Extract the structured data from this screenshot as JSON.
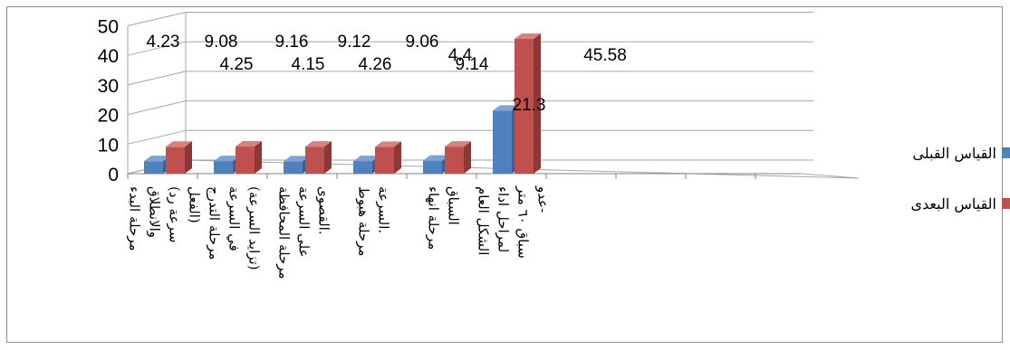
{
  "chart_data": {
    "type": "bar",
    "categories": [
      "مرحلة البدء والانطلاق (سرعة رد الفعل)",
      "مرحلة التدرج في السرعة (تزايد السرعة)",
      "مرحلة المحافظة على السرعة القصوى.",
      "مرحلة هبوط السرعة.",
      "مرحلة انهاء السباق",
      "الشكل العام لمراحل اداء سباق ٦٠ متر عدو-",
      "",
      "",
      ""
    ],
    "series": [
      {
        "name": "القياس القبلى",
        "values": [
          4.23,
          4.25,
          4.15,
          4.26,
          4.4,
          21.3,
          null,
          null,
          null
        ],
        "color": "#4f81bd",
        "side_color": "#3a6190",
        "top_color": "#7da3d6"
      },
      {
        "name": "القياس البعدى",
        "values": [
          9.08,
          9.16,
          9.12,
          9.06,
          9.14,
          45.58,
          null,
          null,
          null
        ],
        "color": "#c0504d",
        "side_color": "#8c3836",
        "top_color": "#d9817e"
      }
    ],
    "data_labels": [
      [
        "4.23",
        "4.25",
        "4.15",
        "4.26",
        "4.4",
        "21.3"
      ],
      [
        "9.08",
        "9.16",
        "9.12",
        "9.06",
        "9.14",
        "45.58"
      ]
    ],
    "y_ticks": [
      "0",
      "10",
      "20",
      "30",
      "40",
      "50"
    ],
    "ylim": [
      0,
      50
    ],
    "grid": true,
    "legend_position": "right"
  }
}
